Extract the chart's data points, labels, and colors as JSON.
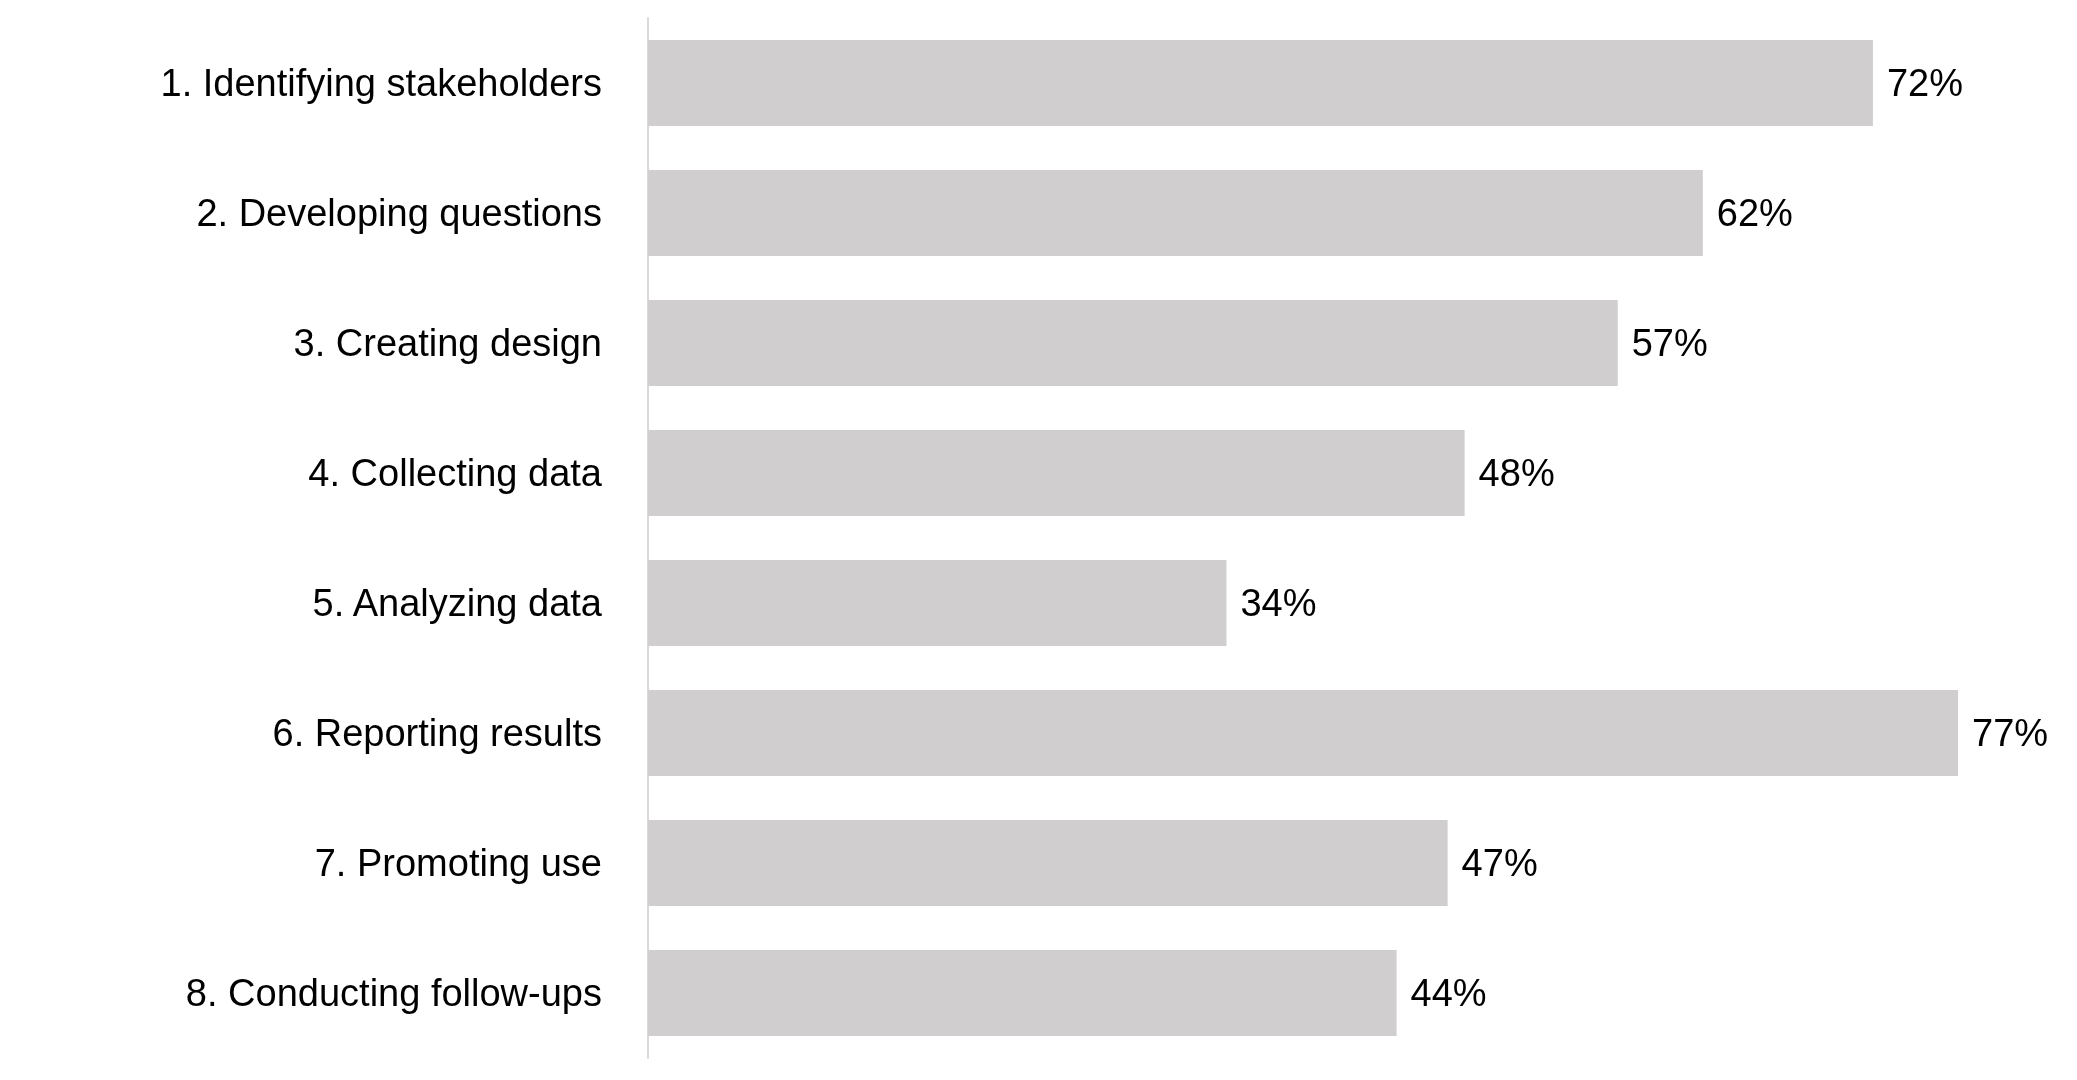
{
  "chart_data": {
    "type": "bar",
    "orientation": "horizontal",
    "categories": [
      "1. Identifying stakeholders",
      "2. Developing questions",
      "3. Creating design",
      "4. Collecting data",
      "5. Analyzing data",
      "6. Reporting results",
      "7. Promoting use",
      "8. Conducting follow-ups"
    ],
    "values": [
      72,
      62,
      57,
      48,
      34,
      77,
      47,
      44
    ],
    "value_labels": [
      "72%",
      "62%",
      "57%",
      "48%",
      "34%",
      "77%",
      "47%",
      "44%"
    ],
    "color": "#d0cece"
  }
}
